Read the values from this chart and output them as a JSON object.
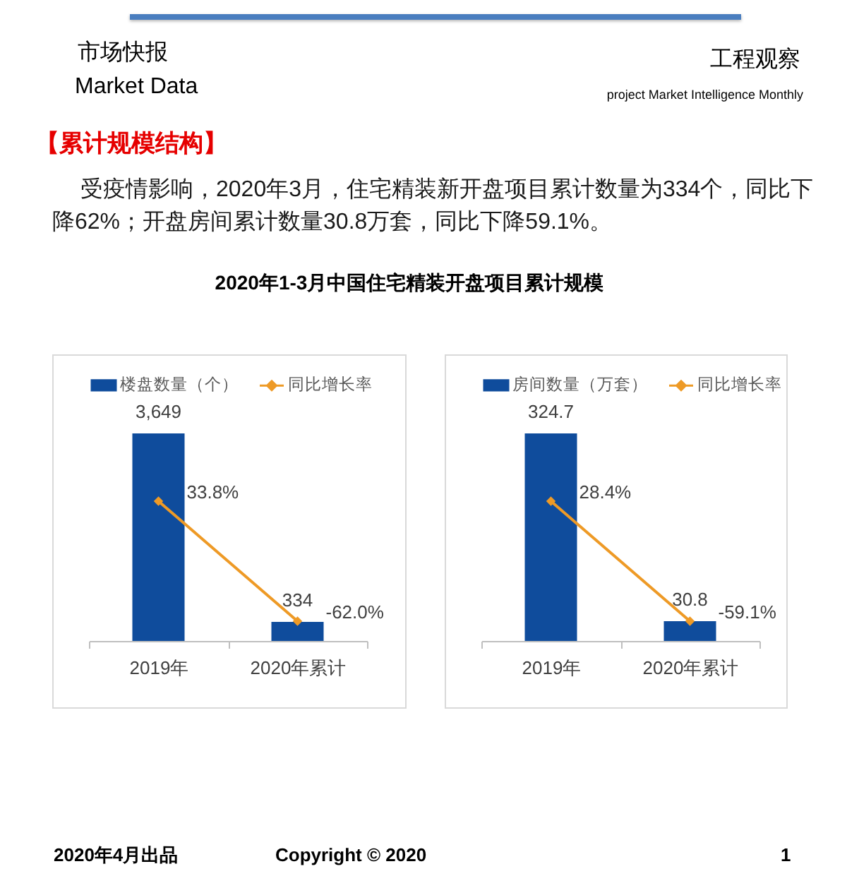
{
  "chart_data": [
    {
      "type": "bar",
      "title": "2020年1-3月中国住宅精装开盘项目累计规模",
      "annotations": [
        "市场快报",
        "Market Data",
        "工程观察",
        "project Market Intelligence Monthly",
        "【累计规模结构】",
        "受疫情影响，2020年3月，住宅精装新开盘项目累计数量为334个，同比下降62%；开盘房间累计数量30.8万套，同比下降59.1%。",
        "2020年4月出品",
        "Copyright © 2020",
        "1"
      ],
      "categories": [
        "2019年",
        "2020年累计"
      ],
      "series": [
        {
          "name": "楼盘数量（个）",
          "color": "#0f4c9c",
          "values": [
            3649,
            334
          ],
          "value_labels": [
            "3,649",
            "334"
          ]
        },
        {
          "name": "同比增长率",
          "type": "line",
          "axis": "y2",
          "color": "#ee9a26",
          "values": [
            33.8,
            -62.0
          ],
          "value_labels": [
            "33.8%",
            "-62.0%"
          ]
        }
      ],
      "tick_labels": "x",
      "marker": "diamond",
      "legend": "top"
    },
    {
      "type": "bar",
      "categories": [
        "2019年",
        "2020年累计"
      ],
      "series": [
        {
          "name": "房间数量（万套）",
          "color": "#0f4c9c",
          "values": [
            324.7,
            30.8
          ],
          "value_labels": [
            "324.7",
            "30.8"
          ]
        },
        {
          "name": "同比增长率",
          "type": "line",
          "axis": "y2",
          "color": "#ee9a26",
          "values": [
            28.4,
            -59.1
          ],
          "value_labels": [
            "28.4%",
            "-59.1%"
          ]
        }
      ],
      "tick_labels": "x",
      "marker": "diamond",
      "legend": "top"
    }
  ]
}
